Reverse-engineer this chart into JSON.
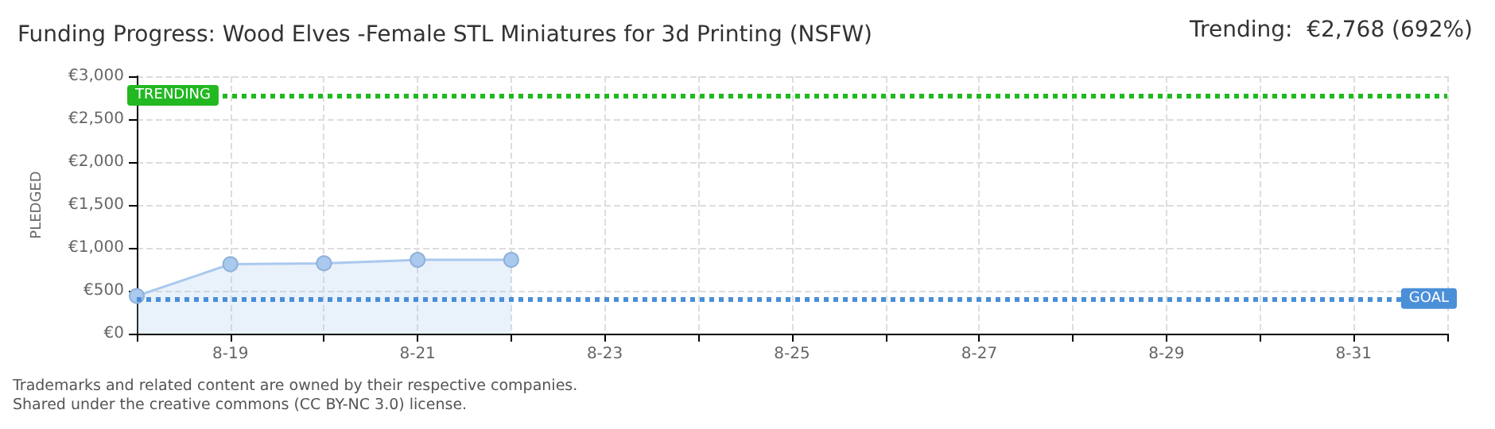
{
  "chart_data": {
    "type": "area",
    "title": "Funding Progress: Wood Elves -Female STL Miniatures for 3d Printing (NSFW)",
    "ylabel": "PLEDGED",
    "categories": [
      null,
      "8-19",
      null,
      "8-21",
      null,
      "8-23",
      null,
      "8-25",
      null,
      "8-27",
      null,
      "8-29",
      null,
      "8-31",
      null
    ],
    "series": [
      {
        "color": "#a9c9ee",
        "values": [
          440,
          810,
          820,
          860,
          860,
          null,
          null,
          null,
          null,
          null,
          null,
          null,
          null,
          null,
          null
        ]
      }
    ],
    "ylim": [
      0,
      3000
    ],
    "yticks": [
      {
        "value": 0,
        "label": "€0"
      },
      {
        "value": 500,
        "label": "€500"
      },
      {
        "value": 1000,
        "label": "€1,000"
      },
      {
        "value": 1500,
        "label": "€1,500"
      },
      {
        "value": 2000,
        "label": "€2,000"
      },
      {
        "value": 2500,
        "label": "€2,500"
      },
      {
        "value": 3000,
        "label": "€3,000"
      }
    ],
    "grid": true,
    "marker": "circle",
    "ref_lines": [
      {
        "axis": "y",
        "value": 2768,
        "label": "TRENDING",
        "color": "#22b822",
        "line_style": "dotted"
      },
      {
        "axis": "y",
        "value": 400,
        "label": "GOAL",
        "color": "#4a8fd8",
        "line_style": "dotted"
      }
    ],
    "annotations": [
      "Trending:  €2,768 (692%)",
      "Trademarks and related content are owned by their respective companies.",
      "Shared under the creative commons (CC BY-NC 3.0) license."
    ]
  }
}
